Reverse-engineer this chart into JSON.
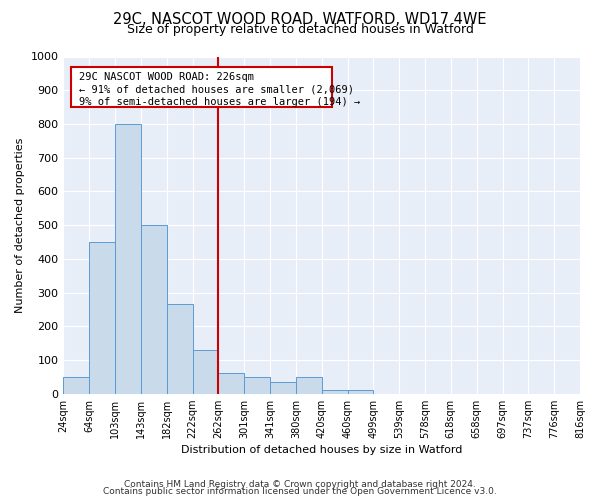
{
  "title_line1": "29C, NASCOT WOOD ROAD, WATFORD, WD17 4WE",
  "title_line2": "Size of property relative to detached houses in Watford",
  "xlabel": "Distribution of detached houses by size in Watford",
  "ylabel": "Number of detached properties",
  "bin_labels": [
    "24sqm",
    "64sqm",
    "103sqm",
    "143sqm",
    "182sqm",
    "222sqm",
    "262sqm",
    "301sqm",
    "341sqm",
    "380sqm",
    "420sqm",
    "460sqm",
    "499sqm",
    "539sqm",
    "578sqm",
    "618sqm",
    "658sqm",
    "697sqm",
    "737sqm",
    "776sqm",
    "816sqm"
  ],
  "values": [
    50,
    450,
    800,
    500,
    265,
    130,
    60,
    50,
    35,
    50,
    10,
    10,
    0,
    0,
    0,
    0,
    0,
    0,
    0,
    0
  ],
  "bar_color": "#c9daea",
  "bar_edge_color": "#5b9bd5",
  "property_line_color": "#cc0000",
  "annotation_text_line1": "29C NASCOT WOOD ROAD: 226sqm",
  "annotation_text_line2": "← 91% of detached houses are smaller (2,069)",
  "annotation_text_line3": "9% of semi-detached houses are larger (194) →",
  "annotation_box_color": "#cc0000",
  "annotation_box_facecolor": "white",
  "ylim": [
    0,
    1000
  ],
  "yticks": [
    0,
    100,
    200,
    300,
    400,
    500,
    600,
    700,
    800,
    900,
    1000
  ],
  "footer_line1": "Contains HM Land Registry data © Crown copyright and database right 2024.",
  "footer_line2": "Contains public sector information licensed under the Open Government Licence v3.0.",
  "plot_bg_color": "#e8eef8",
  "fig_bg_color": "#ffffff"
}
